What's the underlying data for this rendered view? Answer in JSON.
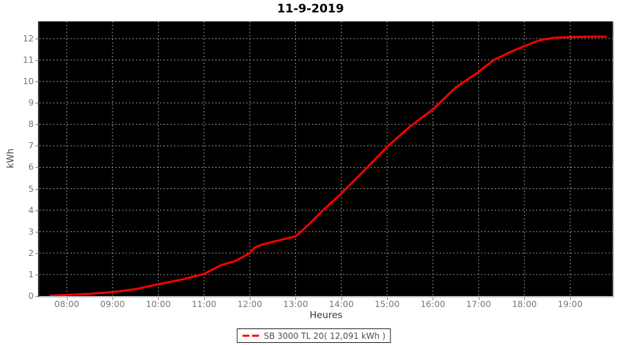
{
  "window": {
    "background": "#ffffff"
  },
  "chart_data": {
    "type": "line",
    "title": "11-9-2019",
    "xlabel": "Heures",
    "ylabel": "kWh",
    "grid": true,
    "legend_position": "bottom-center",
    "plot_background": "#000000",
    "grid_color": "#9b9b9b",
    "tick_color": "#8a8a8a",
    "tick_label_color": "#777777",
    "xlim_hours": [
      7.4,
      19.93
    ],
    "ylim": [
      0,
      12.8
    ],
    "x_ticks": [
      {
        "hour": 8,
        "label": "08:00"
      },
      {
        "hour": 9,
        "label": "09:00"
      },
      {
        "hour": 10,
        "label": "10:00"
      },
      {
        "hour": 11,
        "label": "11:00"
      },
      {
        "hour": 12,
        "label": "12:00"
      },
      {
        "hour": 13,
        "label": "13:00"
      },
      {
        "hour": 14,
        "label": "14:00"
      },
      {
        "hour": 15,
        "label": "15:00"
      },
      {
        "hour": 16,
        "label": "16:00"
      },
      {
        "hour": 17,
        "label": "17:00"
      },
      {
        "hour": 18,
        "label": "18:00"
      },
      {
        "hour": 19,
        "label": "19:00"
      }
    ],
    "y_ticks": [
      0,
      1,
      2,
      3,
      4,
      5,
      6,
      7,
      8,
      9,
      10,
      11,
      12
    ],
    "series": [
      {
        "name": "SB 3000 TL 20( 12,091 kWh )",
        "color": "#ff0000",
        "line_width": 3,
        "points_hour_kwh": [
          [
            7.65,
            0.02
          ],
          [
            8.0,
            0.05
          ],
          [
            8.5,
            0.1
          ],
          [
            9.0,
            0.18
          ],
          [
            9.5,
            0.32
          ],
          [
            10.0,
            0.55
          ],
          [
            10.5,
            0.76
          ],
          [
            11.0,
            1.03
          ],
          [
            11.37,
            1.44
          ],
          [
            11.67,
            1.62
          ],
          [
            11.83,
            1.8
          ],
          [
            12.0,
            2.0
          ],
          [
            12.1,
            2.25
          ],
          [
            12.3,
            2.42
          ],
          [
            12.6,
            2.58
          ],
          [
            13.0,
            2.78
          ],
          [
            13.17,
            3.1
          ],
          [
            13.33,
            3.42
          ],
          [
            13.6,
            4.0
          ],
          [
            14.0,
            4.78
          ],
          [
            14.5,
            5.85
          ],
          [
            15.0,
            6.95
          ],
          [
            15.5,
            7.9
          ],
          [
            16.0,
            8.7
          ],
          [
            16.5,
            9.72
          ],
          [
            17.0,
            10.45
          ],
          [
            17.33,
            11.0
          ],
          [
            17.67,
            11.35
          ],
          [
            18.0,
            11.65
          ],
          [
            18.33,
            11.92
          ],
          [
            18.67,
            12.04
          ],
          [
            19.0,
            12.07
          ],
          [
            19.4,
            12.09
          ],
          [
            19.77,
            12.09
          ]
        ]
      }
    ]
  },
  "legend": {
    "label": "SB 3000 TL 20( 12,091 kWh )",
    "line_color": "#ff0000"
  }
}
